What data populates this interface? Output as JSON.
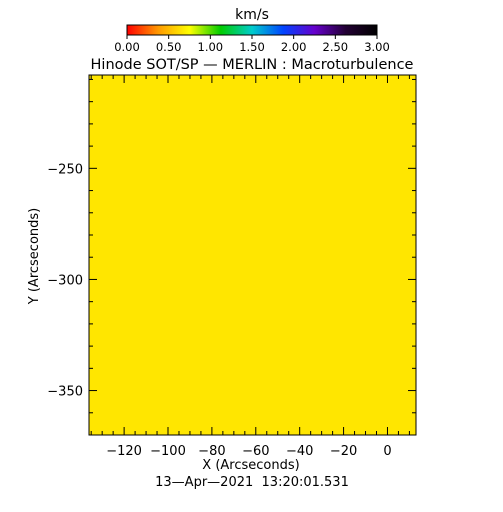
{
  "chart_data": {
    "type": "heatmap",
    "title": "Hinode SOT/SP — MERLIN : Macroturbulence",
    "xlabel": "X (Arcseconds)",
    "ylabel": "Y (Arcseconds)",
    "timestamp": "13—Apr—2021  13:20:01.531",
    "xlim": [
      -136,
      13
    ],
    "ylim": [
      -370,
      -208
    ],
    "x_ticks": [
      {
        "value": -120,
        "label": "−120"
      },
      {
        "value": -100,
        "label": "−100"
      },
      {
        "value": -80,
        "label": "−80"
      },
      {
        "value": -60,
        "label": "−60"
      },
      {
        "value": -40,
        "label": "−40"
      },
      {
        "value": -20,
        "label": "−20"
      },
      {
        "value": 0,
        "label": "0"
      }
    ],
    "x_minor_step": 5,
    "y_ticks": [
      {
        "value": -250,
        "label": "−250"
      },
      {
        "value": -300,
        "label": "−300"
      },
      {
        "value": -350,
        "label": "−350"
      }
    ],
    "y_minor_step": 10,
    "field_value": 1.2,
    "field_color": "#ffe600",
    "colorbar": {
      "label": "km/s",
      "range": [
        0,
        3
      ],
      "ticks": [
        {
          "value": 0,
          "label": "0.00"
        },
        {
          "value": 0.5,
          "label": "0.50"
        },
        {
          "value": 1,
          "label": "1.00"
        },
        {
          "value": 1.5,
          "label": "1.50"
        },
        {
          "value": 2,
          "label": "2.00"
        },
        {
          "value": 2.5,
          "label": "2.50"
        },
        {
          "value": 3,
          "label": "3.00"
        }
      ],
      "stops": [
        "#ff0000",
        "#ff9900",
        "#ffff00",
        "#00cc00",
        "#00cccc",
        "#0044ff",
        "#6600cc",
        "#220033",
        "#000000"
      ]
    }
  }
}
